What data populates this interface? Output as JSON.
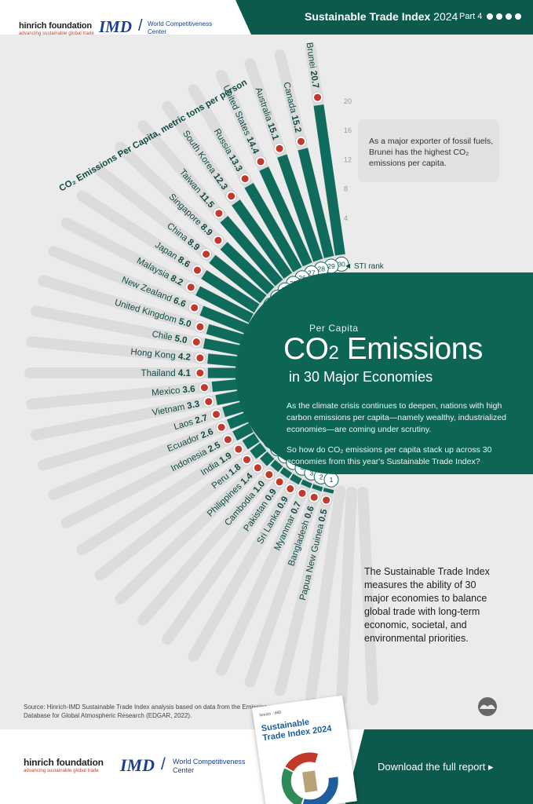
{
  "header": {
    "title": "Sustainable Trade Index",
    "year": "2024",
    "part": "Part 4",
    "hinrich_name": "hinrich foundation",
    "hinrich_tagline": "advancing sustainable global trade",
    "imd_word": "IMD",
    "imd_sub_1": "World Competitiveness",
    "imd_sub_2": "Center"
  },
  "chart_data": {
    "type": "bar",
    "layout": "radial",
    "title": "CO₂ Emissions Per Capita, metric tons per person",
    "value_unit": "metric tons per person",
    "scale_ticks": [
      "20",
      "16",
      "12",
      "8",
      "4"
    ],
    "rank_label": "STI rank",
    "ylim": [
      0,
      20
    ],
    "rows": [
      {
        "rank": "30",
        "country": "Brunei",
        "value": 20.7,
        "value_label": "20.7",
        "flag": "brunei-flag"
      },
      {
        "rank": "29",
        "country": "Canada",
        "value": 15.2,
        "value_label": "15.2",
        "flag": "canada-flag"
      },
      {
        "rank": "28",
        "country": "Australia",
        "value": 15.1,
        "value_label": "15.1",
        "flag": "australia-flag"
      },
      {
        "rank": "27",
        "country": "United States",
        "value": 14.4,
        "value_label": "14.4",
        "flag": "united-states-flag"
      },
      {
        "rank": "26",
        "country": "Russia",
        "value": 13.3,
        "value_label": "13.3",
        "flag": "russia-flag"
      },
      {
        "rank": "25",
        "country": "South Korea",
        "value": 12.3,
        "value_label": "12.3",
        "flag": "south-korea-flag"
      },
      {
        "rank": "24",
        "country": "Taiwan",
        "value": 11.5,
        "value_label": "11.5",
        "flag": "taiwan-flag"
      },
      {
        "rank": "23",
        "country": "Singapore",
        "value": 8.9,
        "value_label": "8.9",
        "flag": "singapore-flag"
      },
      {
        "rank": "22",
        "country": "China",
        "value": 8.9,
        "value_label": "8.9",
        "flag": "china-flag"
      },
      {
        "rank": "21",
        "country": "Japan",
        "value": 8.6,
        "value_label": "8.6",
        "flag": "japan-flag"
      },
      {
        "rank": "20",
        "country": "Malaysia",
        "value": 8.2,
        "value_label": "8.2",
        "flag": "malaysia-flag"
      },
      {
        "rank": "19",
        "country": "New Zealand",
        "value": 6.6,
        "value_label": "6.6",
        "flag": "new-zealand-flag"
      },
      {
        "rank": "18",
        "country": "United Kingdom",
        "value": 5.0,
        "value_label": "5.0",
        "flag": "united-kingdom-flag"
      },
      {
        "rank": "17",
        "country": "Chile",
        "value": 5.0,
        "value_label": "5.0",
        "flag": "chile-flag"
      },
      {
        "rank": "16",
        "country": "Hong Kong",
        "value": 4.2,
        "value_label": "4.2",
        "flag": "hong-kong-flag"
      },
      {
        "rank": "15",
        "country": "Thailand",
        "value": 4.1,
        "value_label": "4.1",
        "flag": "thailand-flag"
      },
      {
        "rank": "14",
        "country": "Mexico",
        "value": 3.6,
        "value_label": "3.6",
        "flag": "mexico-flag"
      },
      {
        "rank": "13",
        "country": "Vietnam",
        "value": 3.3,
        "value_label": "3.3",
        "flag": "vietnam-flag"
      },
      {
        "rank": "12",
        "country": "Laos",
        "value": 2.7,
        "value_label": "2.7",
        "flag": "laos-flag"
      },
      {
        "rank": "11",
        "country": "Ecuador",
        "value": 2.6,
        "value_label": "2.6",
        "flag": "ecuador-flag"
      },
      {
        "rank": "10",
        "country": "Indonesia",
        "value": 2.5,
        "value_label": "2.5",
        "flag": "indonesia-flag"
      },
      {
        "rank": "9",
        "country": "India",
        "value": 1.9,
        "value_label": "1.9",
        "flag": "india-flag"
      },
      {
        "rank": "8",
        "country": "Peru",
        "value": 1.8,
        "value_label": "1.8",
        "flag": "peru-flag"
      },
      {
        "rank": "7",
        "country": "Philippines",
        "value": 1.4,
        "value_label": "1.4",
        "flag": "philippines-flag"
      },
      {
        "rank": "6",
        "country": "Cambodia",
        "value": 1.0,
        "value_label": "1.0",
        "flag": "cambodia-flag"
      },
      {
        "rank": "5",
        "country": "Pakistan",
        "value": 0.9,
        "value_label": "0.9",
        "flag": "pakistan-flag"
      },
      {
        "rank": "4",
        "country": "Sri Lanka",
        "value": 0.9,
        "value_label": "0.9",
        "flag": "sri-lanka-flag"
      },
      {
        "rank": "3",
        "country": "Myanmar",
        "value": 0.7,
        "value_label": "0.7",
        "flag": "myanmar-flag"
      },
      {
        "rank": "2",
        "country": "Bangladesh",
        "value": 0.6,
        "value_label": "0.6",
        "flag": "bangladesh-flag"
      },
      {
        "rank": "1",
        "country": "Papua New Guinea",
        "value": 0.5,
        "value_label": "0.5",
        "flag": "papua-new-guinea-flag"
      }
    ]
  },
  "annotation": "As a major exporter of fossil fuels, Brunei has the highest CO₂ emissions per capita.",
  "panel": {
    "kicker": "Per Capita",
    "title_main": "CO",
    "title_sub": "2",
    "title_rest": " Emissions",
    "subtitle": "in 30 Major Economies",
    "paragraph_1": "As the climate crisis continues to deepen, nations with high carbon emissions per capita—namely wealthy, industrialized economies—are coming under scrutiny.",
    "paragraph_2": "So how do CO₂ emissions per capita stack up across 30 economies from this year's Sustainable Trade Index?"
  },
  "sti_description": "The Sustainable Trade Index measures the ability of 30 major economies to balance global trade with long-term economic, societal, and environmental priorities.",
  "source": "Source: Hinrich-IMD Sustainable Trade Index analysis based on data from the Emissions Database for Global Atmospheric Research (EDGAR, 2022).",
  "footer": {
    "download_label": "Download the full report",
    "report_title": "Sustainable Trade Index 2024"
  },
  "colors": {
    "bar": "#0f6b5c",
    "bar_dark": "#0c5a4d",
    "text": "#0e4b45",
    "background": "#ebebeb",
    "ghost": "#dcdcdc"
  }
}
